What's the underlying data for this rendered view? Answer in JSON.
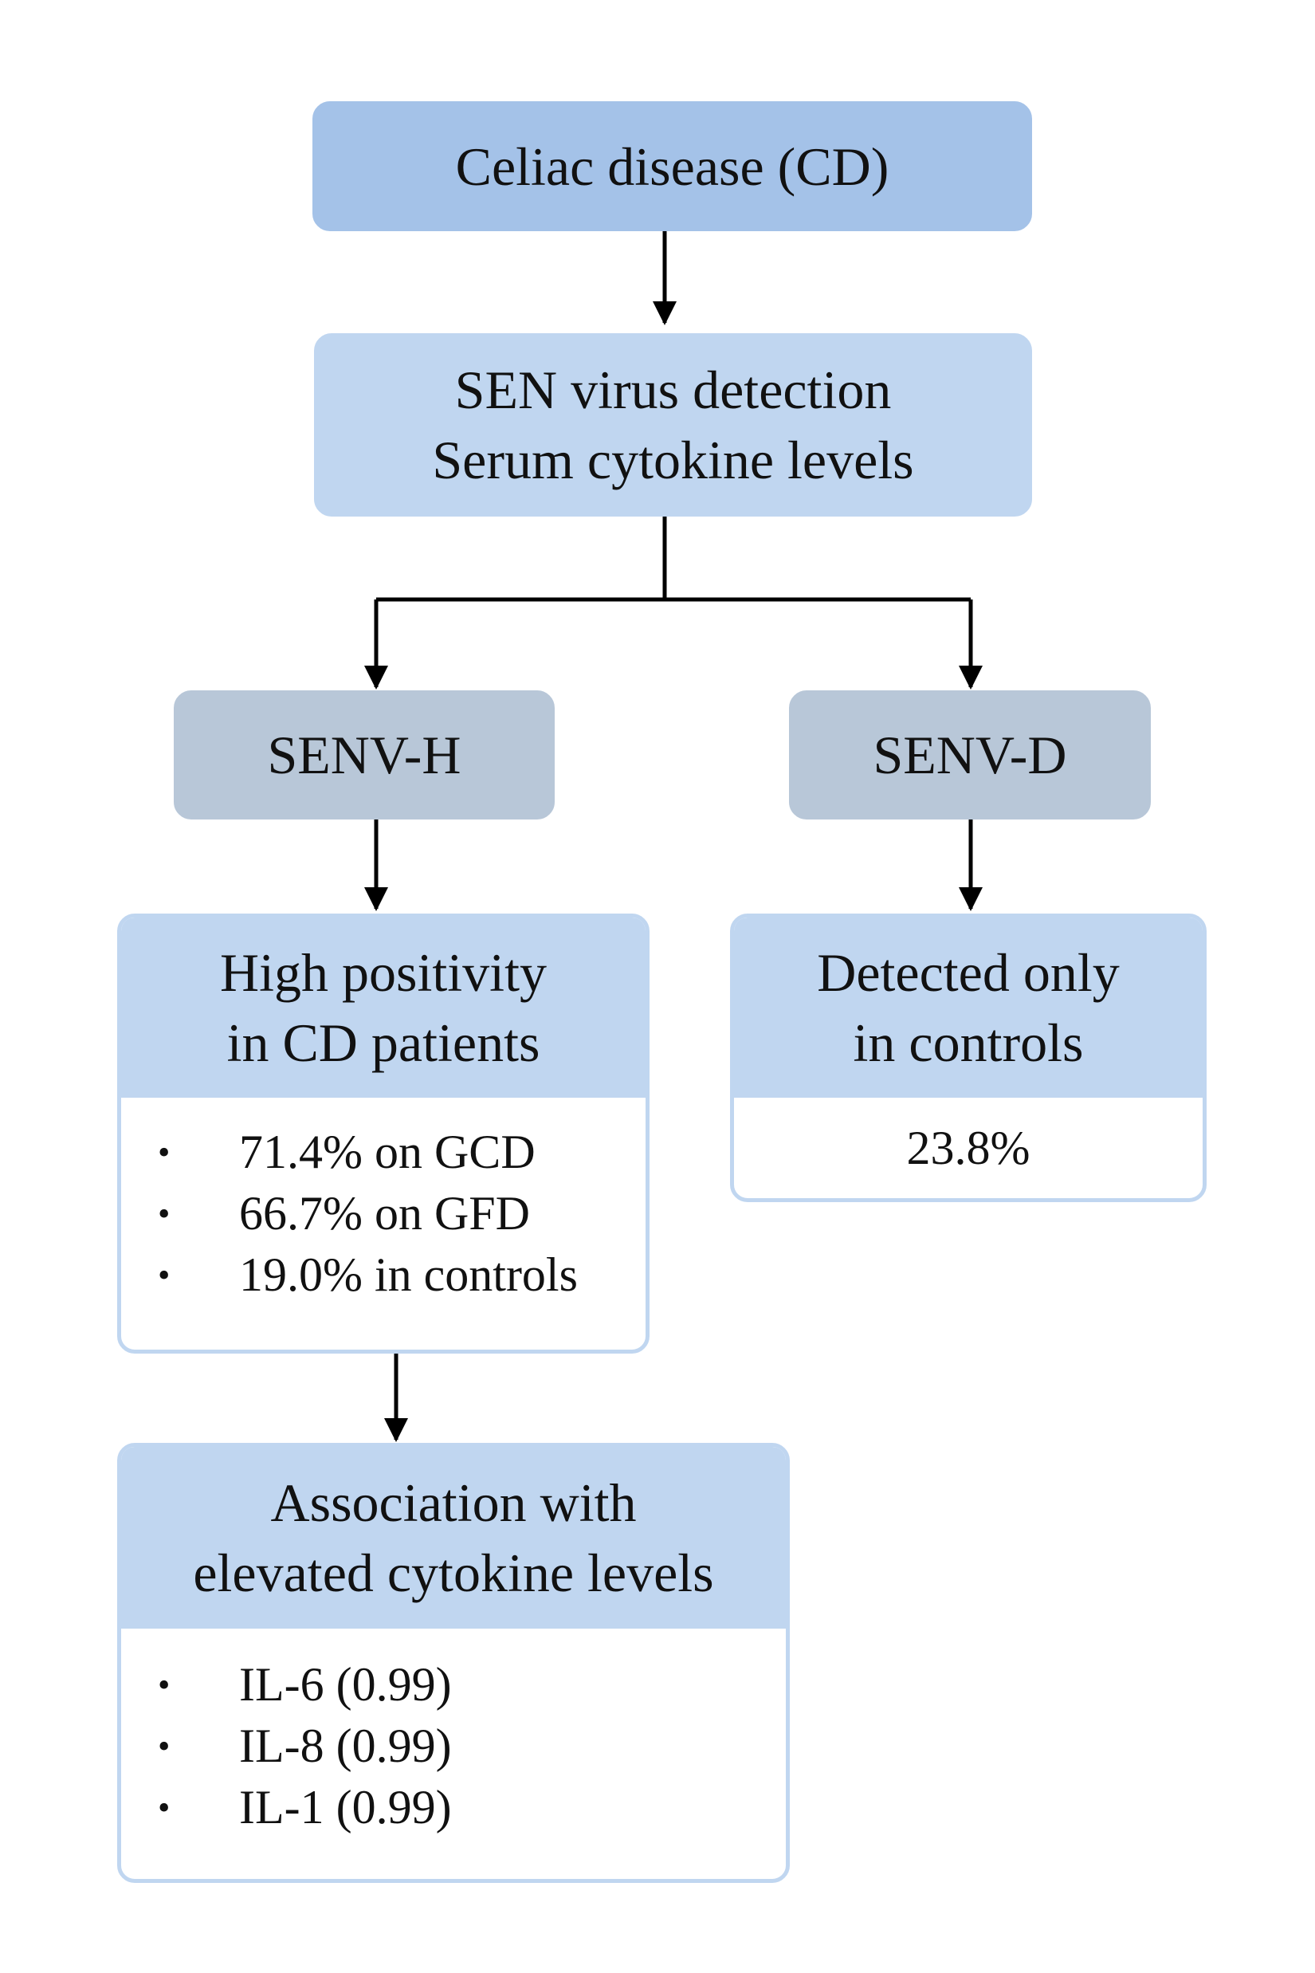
{
  "nodes": {
    "celiac": {
      "label": "Celiac disease (CD)"
    },
    "detection": {
      "lines": [
        "SEN virus detection",
        "Serum cytokine levels"
      ]
    },
    "senv_h": {
      "label": "SENV-H"
    },
    "senv_d": {
      "label": "SENV-D"
    },
    "high_positivity": {
      "title_lines": [
        "High positivity",
        "in CD patients"
      ],
      "items": [
        "71.4% on GCD",
        "66.7% on GFD",
        "19.0% in controls"
      ]
    },
    "detected_controls": {
      "title_lines": [
        "Detected only",
        "in controls"
      ],
      "value": "23.8%"
    },
    "association": {
      "title_lines": [
        "Association with",
        "elevated cytokine levels"
      ],
      "items": [
        "IL-6 (0.99)",
        "IL-8 (0.99)",
        "IL-1 (0.99)"
      ]
    }
  },
  "bullet_glyph": "•",
  "colors": {
    "top_box": "#a4c2e8",
    "light_box": "#c0d6f0",
    "grey_box": "#b8c7d8",
    "connector": "#000000"
  }
}
